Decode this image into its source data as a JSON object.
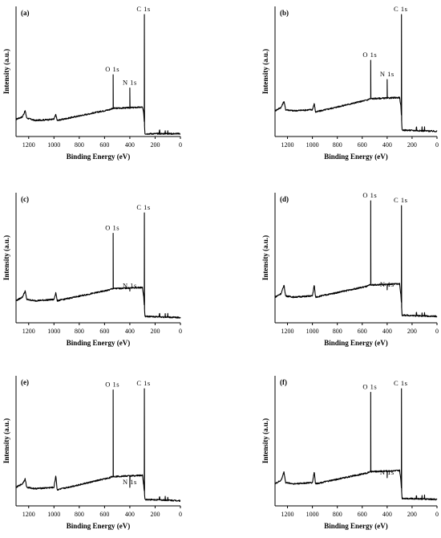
{
  "chart_data": [
    {
      "type": "line",
      "panel_label": "(a)",
      "xlabel": "Binding Energy (eV)",
      "ylabel": "Intensity (a.u.)",
      "xlim": [
        1300,
        0
      ],
      "x_reversed": true,
      "xticks": [
        1200,
        1000,
        800,
        600,
        400,
        200,
        0
      ],
      "y_tick_labels": false,
      "peaks": [
        {
          "name": "O1s",
          "x": 532,
          "y": 0.5
        },
        {
          "name": "N1s",
          "x": 400,
          "y": 0.39
        },
        {
          "name": "C1s",
          "x": 285,
          "y": 1.0
        }
      ],
      "baseline": {
        "x": [
          1300,
          1250,
          1228,
          1215,
          1150,
          1000,
          985,
          975,
          560,
          540,
          300,
          290,
          280,
          0
        ],
        "y": [
          0.13,
          0.15,
          0.2,
          0.14,
          0.12,
          0.13,
          0.17,
          0.12,
          0.21,
          0.22,
          0.23,
          0.18,
          0.01,
          0.01
        ]
      }
    },
    {
      "type": "line",
      "panel_label": "(b)",
      "xlabel": "Binding Energy (eV)",
      "ylabel": "Intensity (a.u.)",
      "xlim": [
        1300,
        0
      ],
      "x_reversed": true,
      "xticks": [
        1200,
        1000,
        800,
        600,
        400,
        200,
        0
      ],
      "y_tick_labels": false,
      "peaks": [
        {
          "name": "O1s",
          "x": 532,
          "y": 0.62
        },
        {
          "name": "N1s",
          "x": 400,
          "y": 0.46
        },
        {
          "name": "C1s",
          "x": 285,
          "y": 1.0
        }
      ],
      "baseline": {
        "x": [
          1300,
          1250,
          1228,
          1215,
          1150,
          1000,
          985,
          975,
          560,
          540,
          300,
          290,
          280,
          0
        ],
        "y": [
          0.2,
          0.23,
          0.28,
          0.21,
          0.2,
          0.21,
          0.26,
          0.19,
          0.29,
          0.3,
          0.31,
          0.24,
          0.04,
          0.03
        ]
      }
    },
    {
      "type": "line",
      "panel_label": "(c)",
      "xlabel": "Binding Energy (eV)",
      "ylabel": "Intensity (a.u.)",
      "xlim": [
        1300,
        0
      ],
      "x_reversed": true,
      "xticks": [
        1200,
        1000,
        800,
        600,
        400,
        200,
        0
      ],
      "y_tick_labels": false,
      "peaks": [
        {
          "name": "O1s",
          "x": 532,
          "y": 0.73
        },
        {
          "name": "N1s",
          "x": 400,
          "y": 0.25
        },
        {
          "name": "C1s",
          "x": 285,
          "y": 0.9
        }
      ],
      "baseline": {
        "x": [
          1300,
          1250,
          1228,
          1215,
          1150,
          1000,
          985,
          975,
          560,
          540,
          300,
          290,
          280,
          0
        ],
        "y": [
          0.17,
          0.2,
          0.25,
          0.18,
          0.17,
          0.18,
          0.24,
          0.17,
          0.26,
          0.27,
          0.28,
          0.2,
          0.04,
          0.03
        ]
      }
    },
    {
      "type": "line",
      "panel_label": "(d)",
      "xlabel": "Binding Energy (eV)",
      "ylabel": "Intensity (a.u.)",
      "xlim": [
        1300,
        0
      ],
      "x_reversed": true,
      "xticks": [
        1200,
        1000,
        800,
        600,
        400,
        200,
        0
      ],
      "y_tick_labels": false,
      "peaks": [
        {
          "name": "O1s",
          "x": 532,
          "y": 1.0
        },
        {
          "name": "N1s",
          "x": 400,
          "y": 0.26
        },
        {
          "name": "C1s",
          "x": 285,
          "y": 0.96
        }
      ],
      "baseline": {
        "x": [
          1300,
          1250,
          1228,
          1215,
          1150,
          1000,
          985,
          975,
          560,
          540,
          300,
          290,
          280,
          0
        ],
        "y": [
          0.2,
          0.23,
          0.3,
          0.21,
          0.2,
          0.21,
          0.3,
          0.2,
          0.29,
          0.3,
          0.31,
          0.22,
          0.05,
          0.04
        ]
      }
    },
    {
      "type": "line",
      "panel_label": "(e)",
      "xlabel": "Binding Energy (eV)",
      "ylabel": "Intensity (a.u.)",
      "xlim": [
        1300,
        0
      ],
      "x_reversed": true,
      "xticks": [
        1200,
        1000,
        800,
        600,
        400,
        200,
        0
      ],
      "y_tick_labels": false,
      "peaks": [
        {
          "name": "O1s",
          "x": 532,
          "y": 0.95
        },
        {
          "name": "N1s",
          "x": 400,
          "y": 0.14
        },
        {
          "name": "C1s",
          "x": 285,
          "y": 0.96
        }
      ],
      "baseline": {
        "x": [
          1300,
          1250,
          1228,
          1215,
          1150,
          1000,
          985,
          975,
          560,
          540,
          300,
          290,
          280,
          0
        ],
        "y": [
          0.14,
          0.17,
          0.21,
          0.14,
          0.13,
          0.14,
          0.24,
          0.12,
          0.22,
          0.23,
          0.24,
          0.16,
          0.04,
          0.03
        ]
      }
    },
    {
      "type": "line",
      "panel_label": "(f)",
      "xlabel": "Binding Energy (eV)",
      "ylabel": "Intensity (a.u.)",
      "xlim": [
        1300,
        0
      ],
      "x_reversed": true,
      "xticks": [
        1200,
        1000,
        800,
        600,
        400,
        200,
        0
      ],
      "y_tick_labels": false,
      "peaks": [
        {
          "name": "O1s",
          "x": 532,
          "y": 0.93
        },
        {
          "name": "N1s",
          "x": 400,
          "y": 0.22
        },
        {
          "name": "C1s",
          "x": 285,
          "y": 0.96
        }
      ],
      "baseline": {
        "x": [
          1300,
          1250,
          1228,
          1215,
          1150,
          1000,
          985,
          975,
          560,
          540,
          300,
          290,
          280,
          0
        ],
        "y": [
          0.17,
          0.2,
          0.27,
          0.18,
          0.17,
          0.18,
          0.27,
          0.17,
          0.26,
          0.27,
          0.28,
          0.2,
          0.05,
          0.04
        ]
      }
    }
  ]
}
